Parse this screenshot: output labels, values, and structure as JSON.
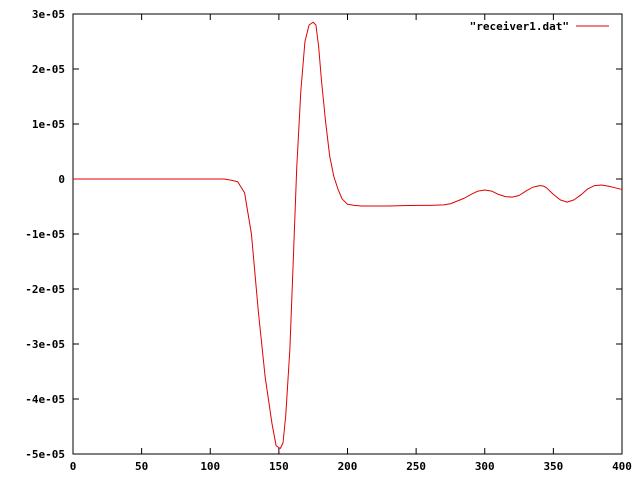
{
  "chart_data": {
    "type": "line",
    "title": "",
    "xlabel": "",
    "ylabel": "",
    "xlim": [
      0,
      400
    ],
    "ylim": [
      -5e-05,
      3e-05
    ],
    "grid": false,
    "legend_position": "top-right",
    "x_ticks": [
      0,
      50,
      100,
      150,
      200,
      250,
      300,
      350,
      400
    ],
    "x_tick_labels": [
      "0",
      "50",
      "100",
      "150",
      "200",
      "250",
      "300",
      "350",
      "400"
    ],
    "y_ticks": [
      -5e-05,
      -4e-05,
      -3e-05,
      -2e-05,
      -1e-05,
      0,
      1e-05,
      2e-05,
      3e-05
    ],
    "y_tick_labels": [
      "-5e-05",
      "-4e-05",
      "-3e-05",
      "-2e-05",
      "-1e-05",
      "0",
      "1e-05",
      "2e-05",
      "3e-05"
    ],
    "series": [
      {
        "name": "\"receiver1.dat\"",
        "color": "#e00000",
        "x": [
          0,
          50,
          100,
          110,
          115,
          120,
          125,
          130,
          135,
          140,
          145,
          148,
          151,
          153,
          155,
          158,
          160,
          163,
          166,
          169,
          172,
          175,
          177,
          179,
          181,
          184,
          187,
          190,
          193,
          196,
          200,
          205,
          210,
          220,
          230,
          240,
          250,
          260,
          270,
          275,
          280,
          285,
          290,
          295,
          300,
          305,
          310,
          315,
          320,
          325,
          330,
          335,
          340,
          343,
          345,
          350,
          355,
          360,
          365,
          370,
          375,
          380,
          385,
          390,
          395,
          400
        ],
        "y": [
          0,
          0,
          0,
          0,
          -2e-07,
          -5e-07,
          -2.5e-06,
          -1e-05,
          -2.4e-05,
          -3.6e-05,
          -4.45e-05,
          -4.85e-05,
          -4.9e-05,
          -4.8e-05,
          -4.3e-05,
          -3.1e-05,
          -1.8e-05,
          2e-06,
          1.6e-05,
          2.5e-05,
          2.8e-05,
          2.85e-05,
          2.8e-05,
          2.4e-05,
          1.8e-05,
          1.05e-05,
          4.2e-06,
          5e-07,
          -1.8e-06,
          -3.6e-06,
          -4.6e-06,
          -4.8e-06,
          -4.9e-06,
          -4.9e-06,
          -4.9e-06,
          -4.85e-06,
          -4.8e-06,
          -4.8e-06,
          -4.7e-06,
          -4.5e-06,
          -4e-06,
          -3.5e-06,
          -2.8e-06,
          -2.2e-06,
          -2e-06,
          -2.2e-06,
          -2.8e-06,
          -3.2e-06,
          -3.3e-06,
          -3e-06,
          -2.2e-06,
          -1.5e-06,
          -1.2e-06,
          -1.3e-06,
          -1.6e-06,
          -2.8e-06,
          -3.8e-06,
          -4.2e-06,
          -3.8e-06,
          -2.9e-06,
          -1.8e-06,
          -1.2e-06,
          -1.1e-06,
          -1.3e-06,
          -1.6e-06,
          -1.9e-06
        ]
      }
    ]
  }
}
